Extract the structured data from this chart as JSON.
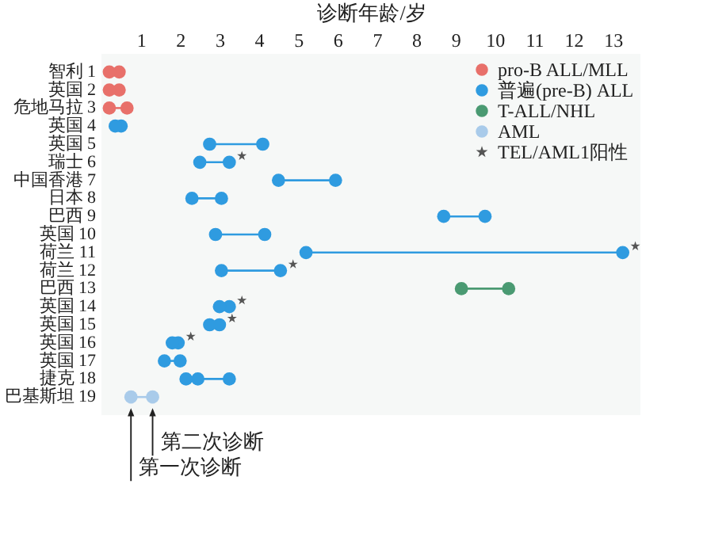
{
  "chart_data": {
    "type": "scatter",
    "orientation": "horizontal",
    "xlabel": "诊断年龄/岁",
    "categories": [
      "智利 1",
      "英国 2",
      "危地马拉 3",
      "英国 4",
      "英国 5",
      "瑞士 6",
      "中国香港 7",
      "日本 8",
      "巴西 9",
      "英国 10",
      "荷兰 11",
      "荷兰 12",
      "巴西 13",
      "英国 14",
      "英国 15",
      "英国 16",
      "英国 17",
      "捷克 18",
      "巴基斯坦 19"
    ],
    "xlim": [
      0,
      13.7
    ],
    "xticks": [
      1,
      2,
      3,
      4,
      5,
      6,
      7,
      8,
      9,
      10,
      11,
      12,
      13
    ],
    "grid": false,
    "legend": "top right",
    "marker": "circle",
    "series": [
      {
        "name": "pro-B ALL/MLL",
        "color": "#e8706a",
        "values": [
          0.2,
          0.2,
          0.2,
          null,
          null,
          null,
          null,
          null,
          null,
          null,
          null,
          null,
          null,
          null,
          null,
          null,
          null,
          null,
          null
        ]
      },
      {
        "color": "#e8706a",
        "values": [
          0.45,
          0.45,
          0.65,
          null,
          null,
          null,
          null,
          null,
          null,
          null,
          null,
          null,
          null,
          null,
          null,
          null,
          null,
          null,
          null
        ]
      },
      {
        "name": "普遍(pre-B) ALL",
        "color": "#2f9be0",
        "values": [
          null,
          null,
          null,
          0.35,
          2.75,
          2.5,
          4.5,
          2.3,
          8.7,
          2.9,
          5.2,
          3.05,
          null,
          3.0,
          2.75,
          1.8,
          1.6,
          2.15,
          null
        ]
      },
      {
        "color": "#2f9be0",
        "values": [
          null,
          null,
          null,
          0.5,
          4.1,
          3.25,
          5.95,
          3.05,
          9.75,
          4.15,
          13.25,
          4.55,
          null,
          3.25,
          3.0,
          1.95,
          2.0,
          2.45,
          null
        ]
      },
      {
        "color": "#2f9be0",
        "values": [
          null,
          null,
          null,
          null,
          null,
          null,
          null,
          null,
          null,
          null,
          null,
          null,
          null,
          null,
          null,
          null,
          null,
          3.25,
          null
        ]
      },
      {
        "name": "T-ALL/NHL",
        "color": "#4a9a72",
        "values": [
          null,
          null,
          null,
          null,
          null,
          null,
          null,
          null,
          null,
          null,
          null,
          null,
          9.15,
          null,
          null,
          null,
          null,
          null,
          null
        ]
      },
      {
        "color": "#4a9a72",
        "values": [
          null,
          null,
          null,
          null,
          null,
          null,
          null,
          null,
          null,
          null,
          null,
          null,
          10.35,
          null,
          null,
          null,
          null,
          null,
          null
        ]
      },
      {
        "name": "AML",
        "color": "#a9cbea",
        "values": [
          null,
          null,
          null,
          null,
          null,
          null,
          null,
          null,
          null,
          null,
          null,
          null,
          null,
          null,
          null,
          null,
          null,
          null,
          0.75
        ]
      },
      {
        "color": "#a9cbea",
        "values": [
          null,
          null,
          null,
          null,
          null,
          null,
          null,
          null,
          null,
          null,
          null,
          null,
          null,
          null,
          null,
          null,
          null,
          null,
          1.3
        ]
      },
      {
        "name": "TEL/AML1阳性",
        "color": "#555555",
        "marker": "star",
        "values": [
          null,
          null,
          null,
          null,
          null,
          3.57,
          null,
          null,
          null,
          null,
          13.57,
          4.87,
          null,
          3.57,
          3.32,
          2.27,
          null,
          null,
          null
        ]
      }
    ],
    "annotations": [
      {
        "text": "第一次诊断",
        "x": 0.75,
        "y": "巴基斯坦 19"
      },
      {
        "text": "第二次诊断",
        "x": 1.3,
        "y": "巴基斯坦 19"
      }
    ]
  }
}
